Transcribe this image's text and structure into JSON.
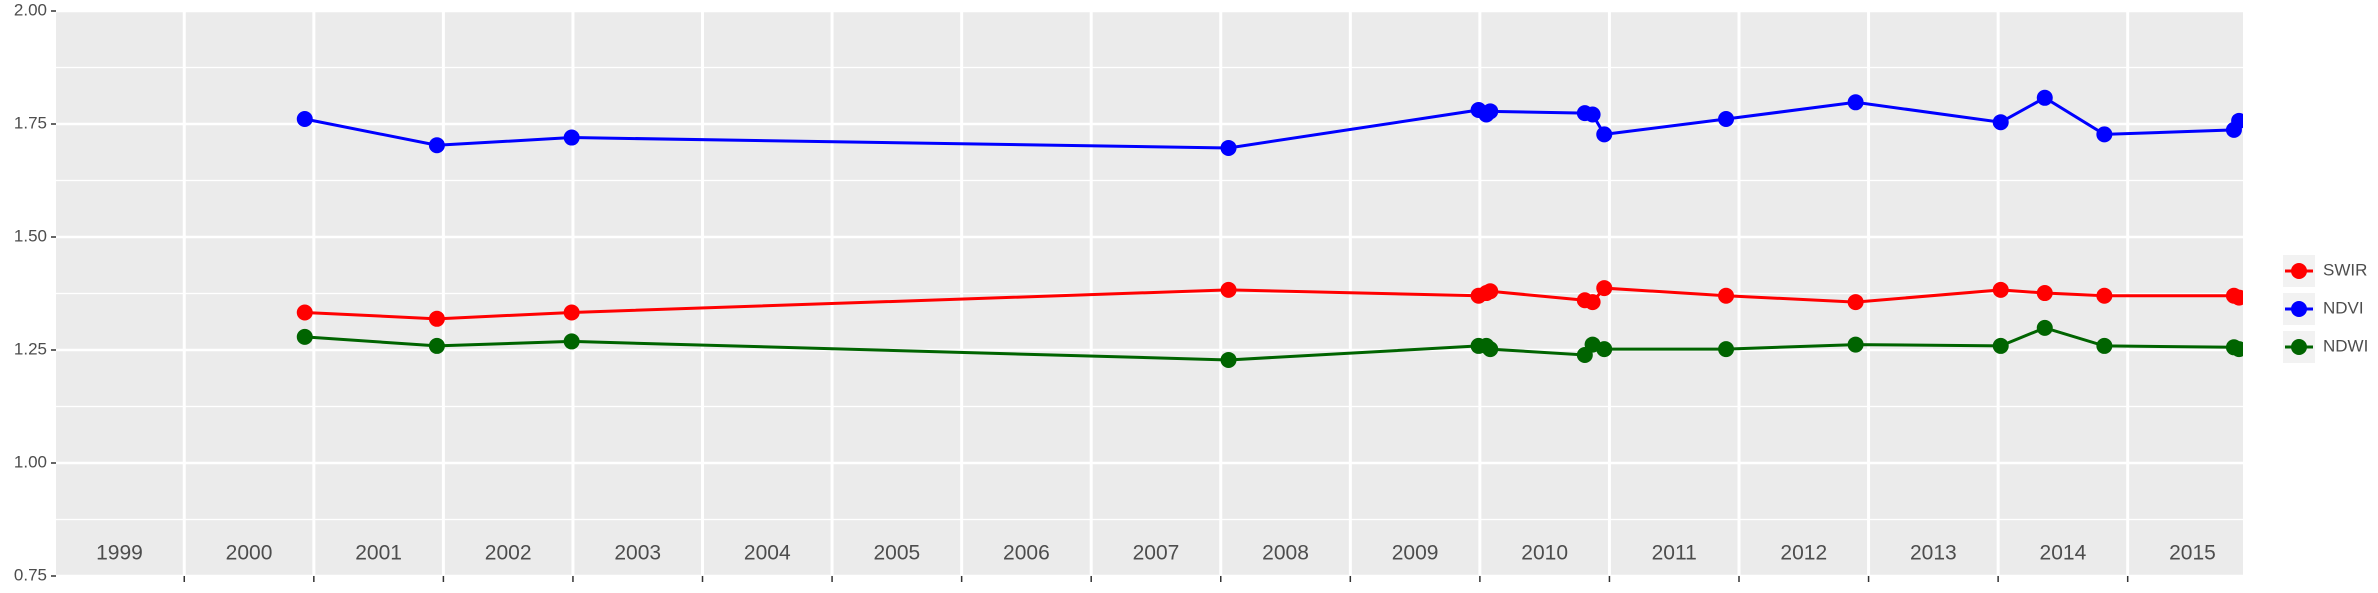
{
  "chart_data": {
    "type": "line",
    "x": [
      2000.93,
      2001.95,
      2002.99,
      2008.06,
      2009.99,
      2010.05,
      2010.08,
      2010.81,
      2010.87,
      2010.96,
      2011.9,
      2012.9,
      2014.02,
      2014.36,
      2014.82,
      2015.82,
      2015.86
    ],
    "series": [
      {
        "name": "SWIR",
        "color": "#ff0000",
        "values": [
          1.333,
          1.319,
          1.333,
          1.383,
          1.37,
          1.376,
          1.38,
          1.36,
          1.356,
          1.387,
          1.37,
          1.356,
          1.383,
          1.376,
          1.37,
          1.37,
          1.366
        ]
      },
      {
        "name": "NDVI",
        "color": "#0000ff",
        "values": [
          1.761,
          1.703,
          1.72,
          1.697,
          1.781,
          1.771,
          1.778,
          1.774,
          1.771,
          1.727,
          1.761,
          1.798,
          1.754,
          1.808,
          1.727,
          1.737,
          1.757
        ]
      },
      {
        "name": "NDWI",
        "color": "#006400",
        "values": [
          1.279,
          1.259,
          1.269,
          1.228,
          1.259,
          1.259,
          1.252,
          1.239,
          1.262,
          1.252,
          1.252,
          1.262,
          1.259,
          1.299,
          1.259,
          1.256,
          1.252
        ]
      }
    ],
    "xlim": [
      1999.01,
      2015.89
    ],
    "xticks": [
      {
        "value": 1999.5,
        "label": "1999"
      },
      {
        "value": 2000.5,
        "label": "2000"
      },
      {
        "value": 2001.5,
        "label": "2001"
      },
      {
        "value": 2002.5,
        "label": "2002"
      },
      {
        "value": 2003.5,
        "label": "2003"
      },
      {
        "value": 2004.5,
        "label": "2004"
      },
      {
        "value": 2005.5,
        "label": "2005"
      },
      {
        "value": 2006.5,
        "label": "2006"
      },
      {
        "value": 2007.5,
        "label": "2007"
      },
      {
        "value": 2008.5,
        "label": "2008"
      },
      {
        "value": 2009.5,
        "label": "2009"
      },
      {
        "value": 2010.5,
        "label": "2010"
      },
      {
        "value": 2011.5,
        "label": "2011"
      },
      {
        "value": 2012.5,
        "label": "2012"
      },
      {
        "value": 2013.5,
        "label": "2013"
      },
      {
        "value": 2014.5,
        "label": "2014"
      },
      {
        "value": 2015.5,
        "label": "2015"
      }
    ],
    "x_gridlines": [
      2000,
      2001,
      2002,
      2003,
      2004,
      2005,
      2006,
      2007,
      2008,
      2009,
      2010,
      2011,
      2012,
      2013,
      2014,
      2015
    ],
    "ylim": [
      0.75,
      2.0
    ],
    "yticks": [
      {
        "value": 0.75,
        "label": "0.75"
      },
      {
        "value": 1.0,
        "label": "1.00"
      },
      {
        "value": 1.25,
        "label": "1.25"
      },
      {
        "value": 1.5,
        "label": "1.50"
      },
      {
        "value": 1.75,
        "label": "1.75"
      },
      {
        "value": 2.0,
        "label": "2.00"
      }
    ],
    "grid": true,
    "legend": "right"
  }
}
